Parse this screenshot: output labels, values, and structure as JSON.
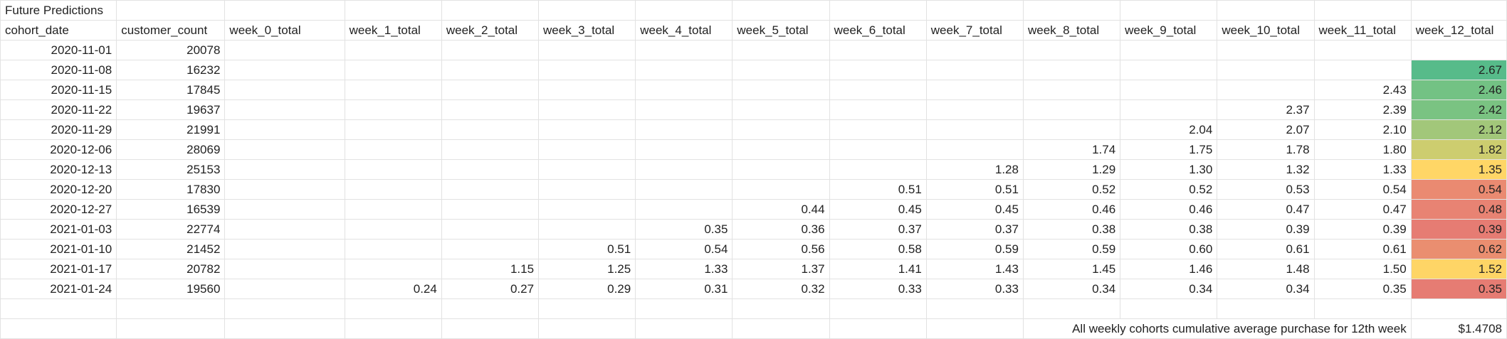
{
  "sheet": {
    "title": "Future Predictions",
    "headers": [
      "cohort_date",
      "customer_count",
      "week_0_total",
      "week_1_total",
      "week_2_total",
      "week_3_total",
      "week_4_total",
      "week_5_total",
      "week_6_total",
      "week_7_total",
      "week_8_total",
      "week_9_total",
      "week_10_total",
      "week_11_total",
      "week_12_total"
    ],
    "rows": [
      [
        "2020-11-01",
        "20078",
        "",
        "",
        "",
        "",
        "",
        "",
        "",
        "",
        "",
        "",
        "",
        "",
        ""
      ],
      [
        "2020-11-08",
        "16232",
        "",
        "",
        "",
        "",
        "",
        "",
        "",
        "",
        "",
        "",
        "",
        "",
        "2.67"
      ],
      [
        "2020-11-15",
        "17845",
        "",
        "",
        "",
        "",
        "",
        "",
        "",
        "",
        "",
        "",
        "",
        "2.43",
        "2.46"
      ],
      [
        "2020-11-22",
        "19637",
        "",
        "",
        "",
        "",
        "",
        "",
        "",
        "",
        "",
        "",
        "2.37",
        "2.39",
        "2.42"
      ],
      [
        "2020-11-29",
        "21991",
        "",
        "",
        "",
        "",
        "",
        "",
        "",
        "",
        "",
        "2.04",
        "2.07",
        "2.10",
        "2.12"
      ],
      [
        "2020-12-06",
        "28069",
        "",
        "",
        "",
        "",
        "",
        "",
        "",
        "",
        "1.74",
        "1.75",
        "1.78",
        "1.80",
        "1.82"
      ],
      [
        "2020-12-13",
        "25153",
        "",
        "",
        "",
        "",
        "",
        "",
        "",
        "1.28",
        "1.29",
        "1.30",
        "1.32",
        "1.33",
        "1.35"
      ],
      [
        "2020-12-20",
        "17830",
        "",
        "",
        "",
        "",
        "",
        "",
        "0.51",
        "0.51",
        "0.52",
        "0.52",
        "0.53",
        "0.54",
        "0.54"
      ],
      [
        "2020-12-27",
        "16539",
        "",
        "",
        "",
        "",
        "",
        "0.44",
        "0.45",
        "0.45",
        "0.46",
        "0.46",
        "0.47",
        "0.47",
        "0.48"
      ],
      [
        "2021-01-03",
        "22774",
        "",
        "",
        "",
        "",
        "0.35",
        "0.36",
        "0.37",
        "0.37",
        "0.38",
        "0.38",
        "0.39",
        "0.39",
        "0.39"
      ],
      [
        "2021-01-10",
        "21452",
        "",
        "",
        "",
        "0.51",
        "0.54",
        "0.56",
        "0.58",
        "0.59",
        "0.59",
        "0.60",
        "0.61",
        "0.61",
        "0.62"
      ],
      [
        "2021-01-17",
        "20782",
        "",
        "",
        "1.15",
        "1.25",
        "1.33",
        "1.37",
        "1.41",
        "1.43",
        "1.45",
        "1.46",
        "1.48",
        "1.50",
        "1.52"
      ],
      [
        "2021-01-24",
        "19560",
        "",
        "0.24",
        "0.27",
        "0.29",
        "0.31",
        "0.32",
        "0.33",
        "0.33",
        "0.34",
        "0.34",
        "0.34",
        "0.35",
        "0.35"
      ]
    ],
    "week12_colors": [
      "",
      "#57bb8a",
      "#73c284",
      "#7ac382",
      "#a2c77a",
      "#cdcd6f",
      "#ffd666",
      "#ea8a71",
      "#e88373",
      "#e67c73",
      "#ea8e70",
      "#fed566",
      "#e67c73"
    ],
    "footer_label": "All weekly cohorts cumulative average purchase for 12th week",
    "footer_value": "$1.4708"
  }
}
